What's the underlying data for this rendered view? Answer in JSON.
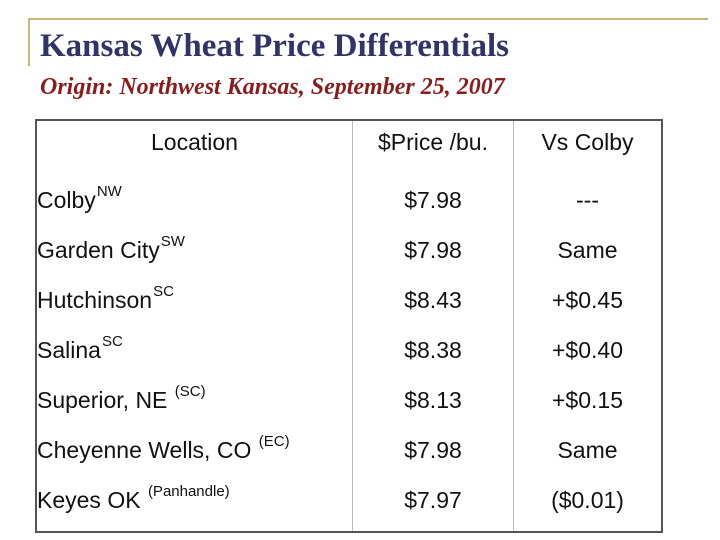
{
  "slide": {
    "title": "Kansas Wheat Price Differentials",
    "subtitle": "Origin: Northwest Kansas, September 25, 2007"
  },
  "table": {
    "headers": [
      "Location",
      "$Price /bu.",
      "Vs Colby"
    ],
    "rows": [
      {
        "location": "Colby",
        "region": "NW",
        "price": "$7.98",
        "vs": "---"
      },
      {
        "location": "Garden City",
        "region": "SW",
        "price": "$7.98",
        "vs": "Same"
      },
      {
        "location": "Hutchinson",
        "region": "SC",
        "price": "$8.43",
        "vs": "+$0.45"
      },
      {
        "location": "Salina",
        "region": "SC",
        "price": "$8.38",
        "vs": "+$0.40"
      },
      {
        "location": "Superior, NE ",
        "region": "(SC)",
        "price": "$8.13",
        "vs": "+$0.15"
      },
      {
        "location": "Cheyenne Wells, CO ",
        "region": "(EC)",
        "price": "$7.98",
        "vs": "Same"
      },
      {
        "location": "Keyes OK ",
        "region": "(Panhandle)",
        "price": "$7.97",
        "vs": "($0.01)"
      }
    ]
  },
  "colors": {
    "title": "#33336a",
    "subtitle": "#8b1c1c",
    "frame": "#c9b77a"
  }
}
